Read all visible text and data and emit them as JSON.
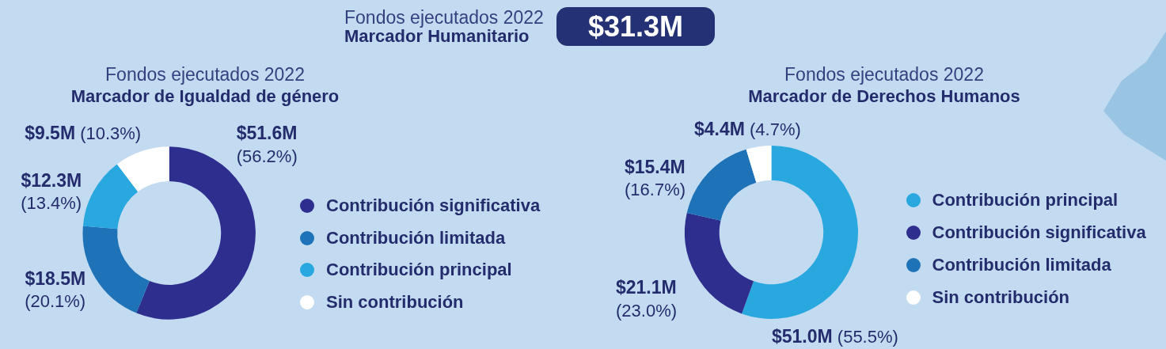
{
  "chart_data": [
    {
      "type": "other",
      "title": "Fondos ejecutados 2022",
      "subtitle": "Marcador Humanitario",
      "annotations": [
        "$31.3M"
      ]
    },
    {
      "type": "donut",
      "title": "Fondos ejecutados 2022",
      "subtitle": "Marcador de Igualdad de género",
      "categories": [
        "Contribución significativa",
        "Contribución limitada",
        "Contribución principal",
        "Sin contribución"
      ],
      "values": [
        56.2,
        20.1,
        13.4,
        10.3
      ],
      "colors": [
        "#2e2e8f",
        "#1e73b8",
        "#29a8e0",
        "#ffffff"
      ],
      "value_labels": [
        "$51.6M (56.2%)",
        "$18.5M (20.1%)",
        "$12.3M (13.4%)",
        "$9.5M (10.3%)"
      ],
      "legend": "right"
    },
    {
      "type": "donut",
      "title": "Fondos ejecutados 2022",
      "subtitle": "Marcador de Derechos Humanos",
      "categories": [
        "Contribución principal",
        "Contribución significativa",
        "Contribución limitada",
        "Sin contribución"
      ],
      "values": [
        55.5,
        23.0,
        16.7,
        4.7
      ],
      "colors": [
        "#29a8e0",
        "#2e2e8f",
        "#1e73b8",
        "#ffffff"
      ],
      "value_labels": [
        "$51.0M (55.5%)",
        "$21.1M (23.0%)",
        "$15.4M (16.7%)",
        "$4.4M (4.7%)"
      ],
      "legend": "right"
    }
  ]
}
